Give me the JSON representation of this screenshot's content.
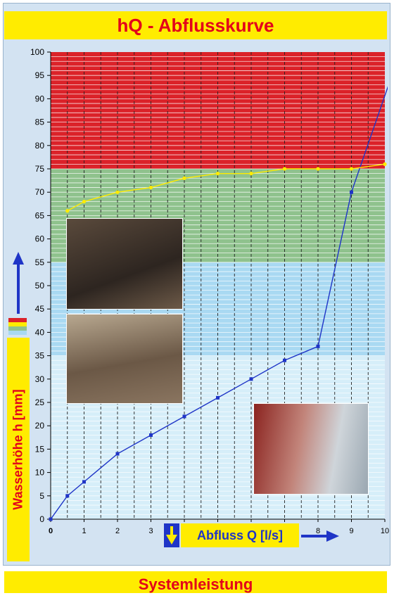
{
  "title": "hQ - Abflusskurve",
  "footer": "Systemleistung",
  "colors": {
    "frame": "#d3e3f2",
    "highlight": "#ffec00",
    "title_text": "#e3001b",
    "zone_red": "#db2229",
    "zone_green": "#8fc28d",
    "zone_light_blue": "#a9d9f2",
    "zone_pale_blue": "#d6eef9",
    "blue_series": "#1f35c7",
    "yellow_series": "#ffec00"
  },
  "icons": {
    "up_arrow": "arrow-up-icon",
    "down_arrow": "arrow-down-icon",
    "right_arrow": "arrow-right-icon"
  },
  "chart_data": {
    "type": "line",
    "title": "hQ - Abflusskurve",
    "xlabel": "Abfluss Q [l/s]",
    "ylabel": "Wasserhöhe h [mm]",
    "xlim": [
      0,
      10
    ],
    "ylim": [
      0,
      100
    ],
    "x_ticks": [
      "0",
      "1",
      "2",
      "3",
      "4",
      "5",
      "6",
      "7",
      "8",
      "9",
      "10"
    ],
    "y_ticks": [
      "0",
      "5",
      "10",
      "15",
      "20",
      "25",
      "30",
      "35",
      "40",
      "45",
      "50",
      "55",
      "60",
      "65",
      "70",
      "75",
      "80",
      "85",
      "90",
      "95",
      "100"
    ],
    "grid": true,
    "zones": [
      {
        "from": 75,
        "to": 100,
        "color": "#db2229"
      },
      {
        "from": 55,
        "to": 75,
        "color": "#8fc28d"
      },
      {
        "from": 35,
        "to": 55,
        "color": "#a9d9f2"
      },
      {
        "from": 0,
        "to": 35,
        "color": "#d6eef9"
      }
    ],
    "series": [
      {
        "color": "#1f35c7",
        "x": [
          0,
          0.5,
          1,
          2,
          3,
          4,
          5,
          6,
          7,
          8,
          9,
          10.5
        ],
        "y": [
          0,
          5,
          8,
          14,
          18,
          22,
          26,
          30,
          34,
          37,
          70,
          101
        ],
        "markers": [
          true,
          true,
          true,
          true,
          true,
          true,
          true,
          true,
          true,
          true,
          true,
          false
        ]
      },
      {
        "color": "#ffec00",
        "x": [
          0.5,
          1,
          2,
          3,
          4,
          5,
          6,
          7,
          8,
          9,
          10
        ],
        "y": [
          66,
          68,
          70,
          71,
          73,
          74,
          74,
          75,
          75,
          75,
          76
        ]
      }
    ]
  }
}
